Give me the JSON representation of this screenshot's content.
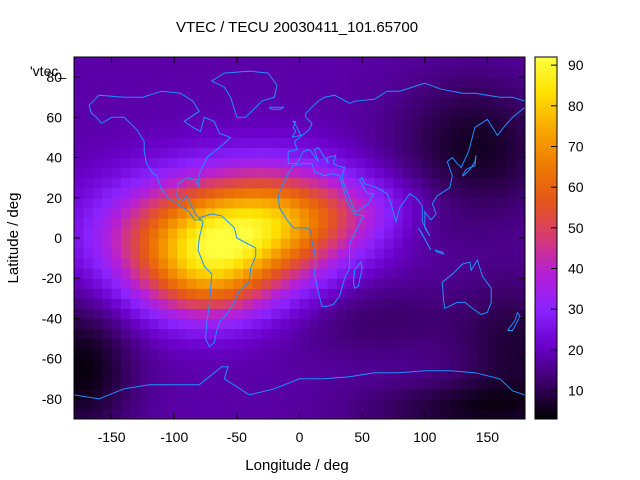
{
  "chart_data": {
    "type": "heatmap",
    "title": "VTEC / TECU 20030411_101.65700",
    "xlabel": "Longitude / deg",
    "ylabel": "Latitude / deg",
    "key_label": "'vtec_",
    "xlim": [
      -180,
      180
    ],
    "ylim": [
      -90,
      90
    ],
    "xticks": [
      -150,
      -100,
      -50,
      0,
      50,
      100,
      150
    ],
    "yticks": [
      -80,
      -60,
      -40,
      -20,
      0,
      20,
      40,
      60,
      80
    ],
    "colorbar": {
      "range": [
        3,
        92
      ],
      "ticks": [
        10,
        20,
        30,
        40,
        50,
        60,
        70,
        80,
        90
      ],
      "palette": [
        "#000000",
        "#3a0066",
        "#6a00c8",
        "#8a22ff",
        "#b51fd6",
        "#d63a74",
        "#e4561a",
        "#ee7b00",
        "#f8a800",
        "#fde000",
        "#ffff40"
      ]
    },
    "background_vtec": 18,
    "tec_blobs": [
      {
        "lon": -70,
        "lat": 0,
        "sigma_lon": 55,
        "sigma_lat": 20,
        "amp": 58
      },
      {
        "lon": -75,
        "lat": -22,
        "sigma_lon": 35,
        "sigma_lat": 15,
        "amp": 22
      },
      {
        "lon": -15,
        "lat": 12,
        "sigma_lon": 42,
        "sigma_lat": 18,
        "amp": 26
      },
      {
        "lon": 45,
        "lat": 12,
        "sigma_lon": 45,
        "sigma_lat": 13,
        "amp": 12
      },
      {
        "lon": 95,
        "lat": 5,
        "sigma_lon": 30,
        "sigma_lat": 10,
        "amp": -4
      }
    ],
    "low_regions": [
      {
        "lon": 140,
        "lat": 45,
        "sigma_lon": 45,
        "sigma_lat": 25,
        "amp": -12
      },
      {
        "lon": -175,
        "lat": -65,
        "sigma_lon": 30,
        "sigma_lat": 25,
        "amp": -14
      },
      {
        "lon": 175,
        "lat": -55,
        "sigma_lon": 35,
        "sigma_lat": 25,
        "amp": -10
      },
      {
        "lon": 130,
        "lat": -85,
        "sigma_lon": 60,
        "sigma_lat": 10,
        "amp": -10
      },
      {
        "lon": 60,
        "lat": -40,
        "sigma_lon": 50,
        "sigma_lat": 15,
        "amp": -6
      }
    ],
    "coastline_color": "#1e90ff"
  }
}
